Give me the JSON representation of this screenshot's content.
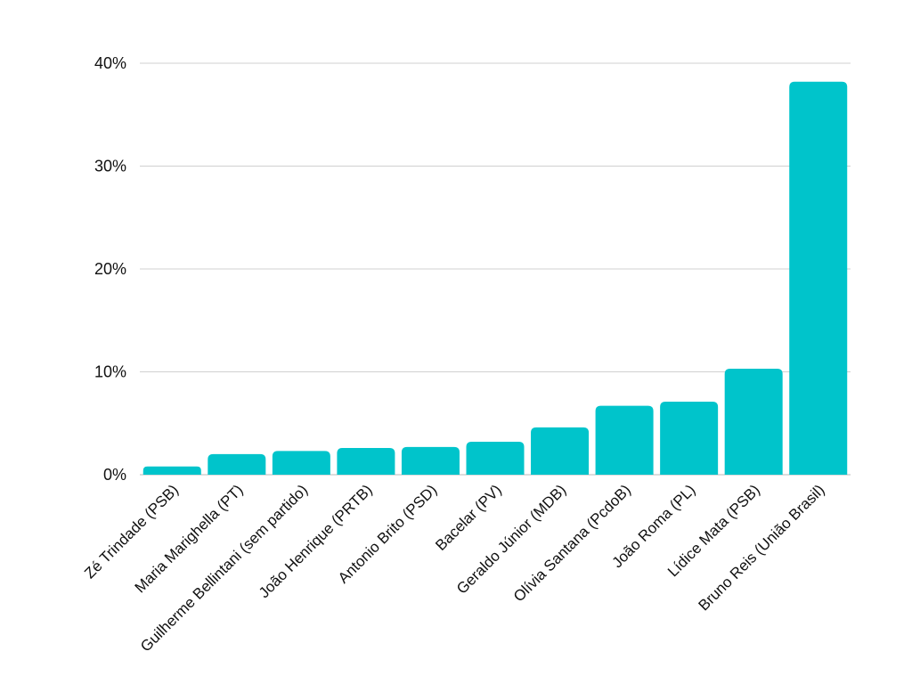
{
  "chart_data": {
    "type": "bar",
    "categories": [
      "Zé Trindade (PSB)",
      "Maria Marighella (PT)",
      "Guilherme Bellintani (sem partido)",
      "João Henrique (PRTB)",
      "Antonio Brito (PSD)",
      "Bacelar (PV)",
      "Geraldo Júnior (MDB)",
      "Olívia Santana (PcdoB)",
      "João Roma (PL)",
      "Lídice Mata (PSB)",
      "Bruno Reis (União Brasil)"
    ],
    "values": [
      0.8,
      2.0,
      2.3,
      2.6,
      2.7,
      3.2,
      4.6,
      6.7,
      7.1,
      10.3,
      38.2
    ],
    "yticks": [
      "0%",
      "10%",
      "20%",
      "30%",
      "40%"
    ],
    "ytick_values": [
      0,
      10,
      20,
      30,
      40
    ],
    "ylim": [
      0,
      40
    ],
    "grid": true,
    "legend": "none",
    "bar_color": "#00C4CB",
    "title": "",
    "xlabel": "",
    "ylabel": ""
  }
}
